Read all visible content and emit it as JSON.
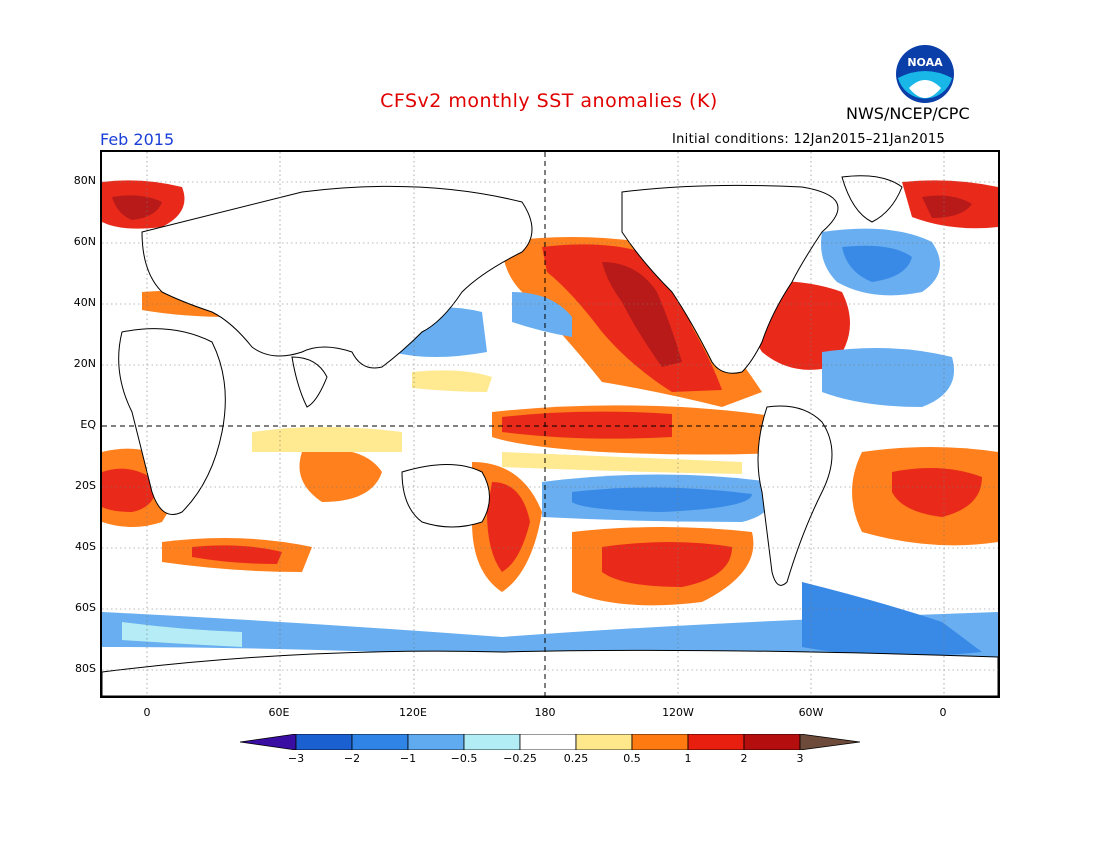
{
  "header": {
    "title": "CFSv2 monthly SST anomalies (K)",
    "agency": "NWS/NCEP/CPC",
    "logo_text": "NOAA",
    "period": "Feb 2015",
    "initial_conditions": "Initial conditions: 12Jan2015–21Jan2015"
  },
  "map": {
    "projection": "cylindrical-equidistant",
    "lon_range": [
      -20,
      360
    ],
    "lat_range": [
      -90,
      90
    ],
    "lat_labels": [
      "80N",
      "60N",
      "40N",
      "20N",
      "EQ",
      "20S",
      "40S",
      "60S",
      "80S"
    ],
    "lon_labels": [
      "0",
      "60E",
      "120E",
      "180",
      "120W",
      "60W",
      "0"
    ],
    "dashed_lines": [
      "equator",
      "dateline"
    ]
  },
  "colorbar": {
    "tick_labels": [
      "−3",
      "−2",
      "−1",
      "−0.5",
      "−0.25",
      "0.25",
      "0.5",
      "1",
      "2",
      "3"
    ],
    "colors": [
      "#3b0ea3",
      "#1b60d0",
      "#2f84e6",
      "#60aaf0",
      "#b2ecf5",
      "#ffffff",
      "#ffe88c",
      "#ff7a10",
      "#e81f0e",
      "#b50e0e",
      "#6e4a3a"
    ]
  },
  "anomaly_regions": [
    {
      "name": "north-pacific-warm-blob",
      "level": "1 to 3 K"
    },
    {
      "name": "equatorial-central-pacific-warm",
      "level": "1 to 2 K"
    },
    {
      "name": "north-atlantic-subpolar-cool",
      "level": "-0.5 to -2 K"
    },
    {
      "name": "south-atlantic-warm",
      "level": "1 to 2 K"
    },
    {
      "name": "southeast-pacific-warm",
      "level": "1 to 2 K"
    },
    {
      "name": "southern-ocean-cool",
      "level": "-0.25 to -1 K"
    }
  ]
}
